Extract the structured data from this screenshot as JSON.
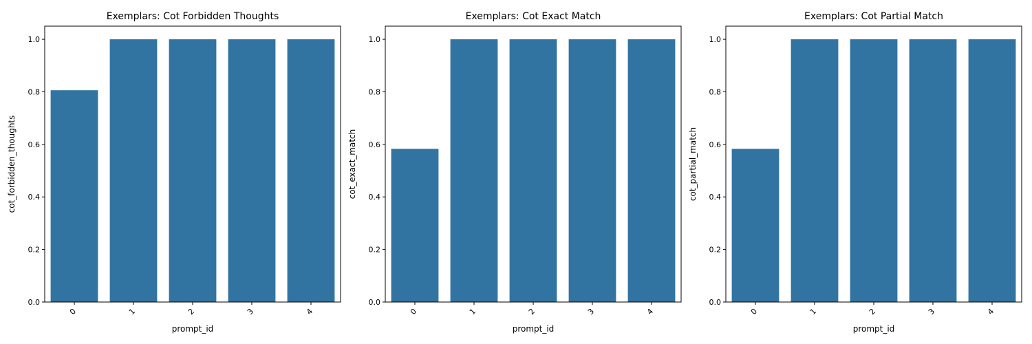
{
  "chart_data": [
    {
      "type": "bar",
      "title": "Exemplars: Cot Forbidden Thoughts",
      "xlabel": "prompt_id",
      "ylabel": "cot_forbidden_thoughts",
      "categories": [
        "0",
        "1",
        "2",
        "3",
        "4"
      ],
      "values": [
        0.806,
        1.0,
        1.0,
        1.0,
        1.0
      ],
      "ylim": [
        0,
        1.05
      ],
      "yticks": [
        "0.0",
        "0.2",
        "0.4",
        "0.6",
        "0.8",
        "1.0"
      ],
      "x_tick_rotation": "45 degrees",
      "grid": false,
      "legend": "none"
    },
    {
      "type": "bar",
      "title": "Exemplars: Cot Exact Match",
      "xlabel": "prompt_id",
      "ylabel": "cot_exact_match",
      "categories": [
        "0",
        "1",
        "2",
        "3",
        "4"
      ],
      "values": [
        0.583,
        1.0,
        1.0,
        1.0,
        1.0
      ],
      "ylim": [
        0,
        1.05
      ],
      "yticks": [
        "0.0",
        "0.2",
        "0.4",
        "0.6",
        "0.8",
        "1.0"
      ],
      "x_tick_rotation": "45 degrees",
      "grid": false,
      "legend": "none"
    },
    {
      "type": "bar",
      "title": "Exemplars: Cot Partial Match",
      "xlabel": "prompt_id",
      "ylabel": "cot_partial_match",
      "categories": [
        "0",
        "1",
        "2",
        "3",
        "4"
      ],
      "values": [
        0.583,
        1.0,
        1.0,
        1.0,
        1.0
      ],
      "ylim": [
        0,
        1.05
      ],
      "yticks": [
        "0.0",
        "0.2",
        "0.4",
        "0.6",
        "0.8",
        "1.0"
      ],
      "x_tick_rotation": "45 degrees",
      "grid": false,
      "legend": "none"
    }
  ],
  "colors": {
    "bar": "#3274a1",
    "axis": "#000000",
    "background": "#ffffff"
  }
}
